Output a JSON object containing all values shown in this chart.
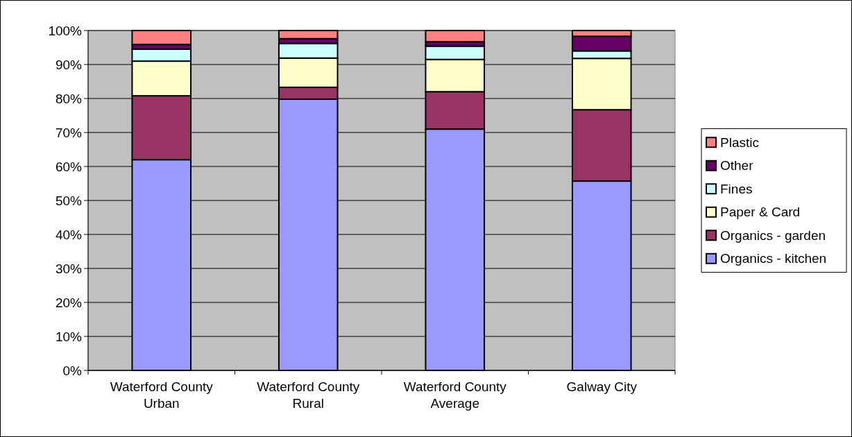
{
  "chart_data": {
    "type": "bar",
    "categories": [
      "Waterford County Urban",
      "Waterford County Rural",
      "Waterford County Average",
      "Galway City"
    ],
    "stacked": true,
    "series": [
      {
        "name": "Organics - kitchen",
        "color": "#9999ff",
        "values": [
          62,
          79.8,
          71,
          55.7
        ]
      },
      {
        "name": "Organics - garden",
        "color": "#993366",
        "values": [
          18.8,
          3.5,
          11,
          21
        ]
      },
      {
        "name": "Paper & Card",
        "color": "#ffffcc",
        "values": [
          10.2,
          8.6,
          9.5,
          15.1
        ]
      },
      {
        "name": "Fines",
        "color": "#ccffff",
        "values": [
          3.5,
          4.3,
          3.9,
          2.2
        ]
      },
      {
        "name": "Other",
        "color": "#660066",
        "values": [
          1.4,
          1.4,
          1.3,
          4.3
        ]
      },
      {
        "name": "Plastic",
        "color": "#ff8080",
        "values": [
          4.1,
          2.4,
          3.3,
          1.7
        ]
      }
    ],
    "ylim": [
      0,
      100
    ],
    "yticks": [
      {
        "value": 0,
        "label": "0%"
      },
      {
        "value": 10,
        "label": "10%"
      },
      {
        "value": 20,
        "label": "20%"
      },
      {
        "value": 30,
        "label": "30%"
      },
      {
        "value": 40,
        "label": "40%"
      },
      {
        "value": 50,
        "label": "50%"
      },
      {
        "value": 60,
        "label": "60%"
      },
      {
        "value": 70,
        "label": "70%"
      },
      {
        "value": 80,
        "label": "80%"
      },
      {
        "value": 90,
        "label": "90%"
      },
      {
        "value": 100,
        "label": "100%"
      }
    ],
    "grid": "y",
    "legend": "right"
  }
}
